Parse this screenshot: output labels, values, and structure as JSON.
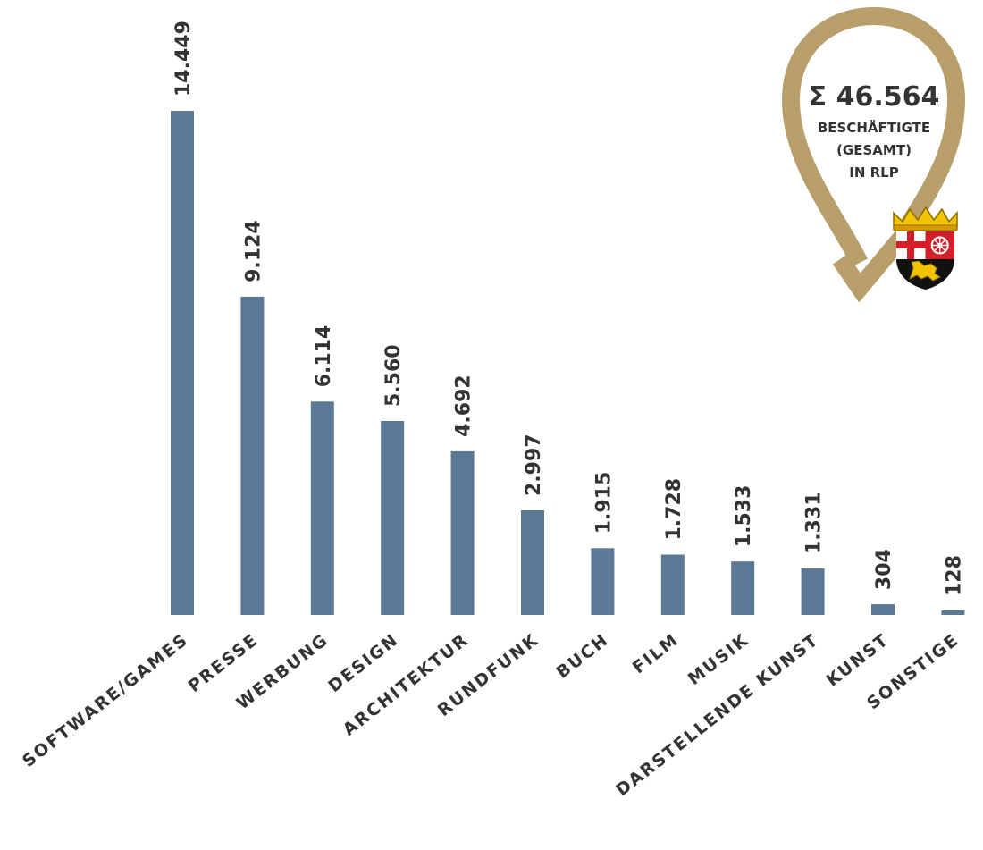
{
  "chart_data": {
    "type": "bar",
    "categories": [
      "SOFTWARE/GAMES",
      "PRESSE",
      "WERBUNG",
      "DESIGN",
      "ARCHITEKTUR",
      "RUNDFUNK",
      "BUCH",
      "FILM",
      "MUSIK",
      "DARSTELLENDE KUNST",
      "KUNST",
      "SONSTIGE"
    ],
    "values": [
      14449,
      9124,
      6114,
      5560,
      4692,
      2997,
      1915,
      1728,
      1533,
      1331,
      304,
      128
    ],
    "value_labels": [
      "14.449",
      "9.124",
      "6.114",
      "5.560",
      "4.692",
      "2.997",
      "1.915",
      "1.728",
      "1.533",
      "1.331",
      "304",
      "128"
    ],
    "ylim": [
      0,
      14449
    ],
    "grid": false,
    "legend": "none",
    "colors": {
      "bar": "#5b7895",
      "text": "#333333",
      "badge_ring": "#b89e6a"
    }
  },
  "badge": {
    "total": "Σ 46.564",
    "line1": "BESCHÄFTIGTE",
    "line2": "(GESAMT)",
    "line3": "IN RLP",
    "icon": "rlp-coat-of-arms-icon"
  }
}
